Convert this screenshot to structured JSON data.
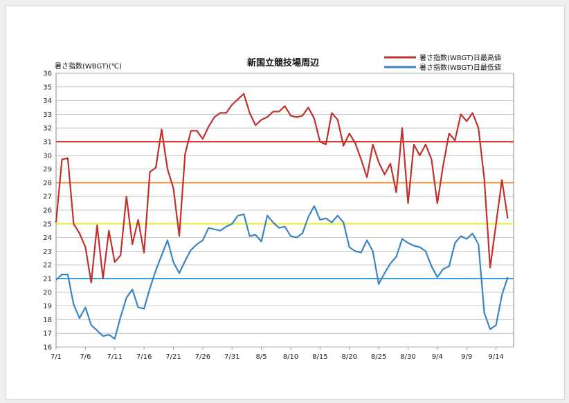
{
  "chart_data": {
    "type": "line",
    "title": "新国立競技場周辺",
    "ylabel": "暑さ指数(WBGT)(℃)",
    "xlabel": "",
    "ylim": [
      16,
      36
    ],
    "yticks": [
      16,
      17,
      18,
      19,
      20,
      21,
      22,
      23,
      24,
      25,
      26,
      27,
      28,
      29,
      30,
      31,
      32,
      33,
      34,
      35,
      36
    ],
    "xtick_labels": [
      "7/1",
      "7/6",
      "7/11",
      "7/16",
      "7/21",
      "7/26",
      "7/31",
      "8/5",
      "8/10",
      "8/15",
      "8/20",
      "8/25",
      "8/30",
      "9/4",
      "9/9",
      "9/14"
    ],
    "xtick_days": [
      0,
      5,
      10,
      15,
      20,
      25,
      30,
      35,
      40,
      45,
      50,
      55,
      60,
      65,
      70,
      75
    ],
    "x_range": [
      0,
      78
    ],
    "grid": "horizontal",
    "legend_position": "top-right",
    "series": [
      {
        "name": "暑さ指数(WBGT)日最高値",
        "color": "#c0302c",
        "values": [
          25.1,
          29.7,
          29.8,
          25.0,
          24.3,
          23.3,
          20.7,
          24.9,
          21.0,
          24.5,
          22.2,
          22.7,
          27.0,
          23.5,
          25.3,
          22.9,
          28.8,
          29.1,
          31.9,
          29.0,
          27.6,
          24.1,
          30.1,
          31.8,
          31.8,
          31.2,
          32.1,
          32.8,
          33.1,
          33.1,
          33.7,
          34.1,
          34.5,
          33.1,
          32.2,
          32.6,
          32.8,
          33.2,
          33.2,
          33.6,
          32.9,
          32.8,
          32.9,
          33.5,
          32.7,
          31.0,
          30.8,
          33.1,
          32.6,
          30.7,
          31.6,
          30.9,
          29.7,
          28.4,
          30.8,
          29.5,
          28.6,
          29.4,
          27.3,
          32.0,
          26.5,
          30.8,
          30.0,
          30.8,
          29.7,
          26.5,
          29.3,
          31.6,
          31.1,
          33.0,
          32.5,
          33.1,
          32.0,
          28.3,
          21.8,
          25.0,
          28.2,
          25.4
        ]
      },
      {
        "name": "暑さ指数(WBGT)日最低値",
        "color": "#3a84c6",
        "values": [
          20.9,
          21.3,
          21.3,
          19.1,
          18.1,
          18.9,
          17.6,
          17.2,
          16.8,
          16.9,
          16.6,
          18.2,
          19.6,
          20.2,
          18.9,
          18.8,
          20.3,
          21.6,
          22.7,
          23.8,
          22.2,
          21.4,
          22.3,
          23.1,
          23.5,
          23.8,
          24.7,
          24.6,
          24.5,
          24.8,
          25.0,
          25.6,
          25.7,
          24.1,
          24.2,
          23.7,
          25.6,
          25.1,
          24.7,
          24.8,
          24.1,
          24.0,
          24.3,
          25.5,
          26.3,
          25.3,
          25.4,
          25.1,
          25.6,
          25.1,
          23.3,
          23.0,
          22.9,
          23.8,
          23.0,
          20.6,
          21.4,
          22.1,
          22.6,
          23.9,
          23.6,
          23.4,
          23.3,
          23.0,
          21.9,
          21.1,
          21.7,
          21.9,
          23.6,
          24.1,
          23.9,
          24.3,
          23.5,
          18.5,
          17.3,
          17.6,
          19.8,
          21.1
        ]
      }
    ],
    "reference_lines": [
      {
        "value": 31,
        "color": "#d93a2a"
      },
      {
        "value": 28,
        "color": "#f08a3a"
      },
      {
        "value": 25,
        "color": "#f2ee2a"
      },
      {
        "value": 21,
        "color": "#3aa0e0"
      }
    ]
  }
}
